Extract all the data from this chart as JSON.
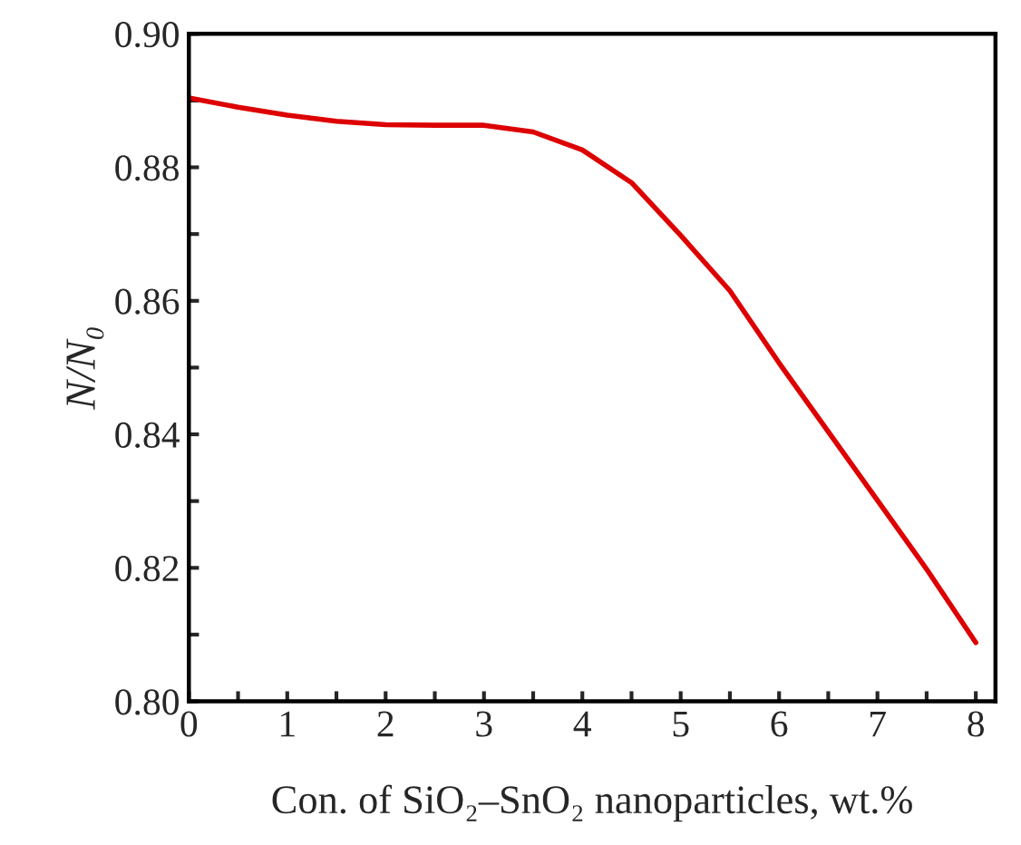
{
  "chart_data": {
    "type": "line",
    "xlabel": "Con. of SiO₂–SnO₂ nanoparticles, wt.%",
    "ylabel": "N/N₀",
    "x": [
      0,
      0.5,
      1,
      1.5,
      2,
      2.5,
      3,
      3.5,
      4,
      4.5,
      5,
      5.5,
      6,
      6.5,
      7,
      7.5,
      8
    ],
    "series": [
      {
        "color": "#dd0000",
        "values": [
          0.8904,
          0.889,
          0.8878,
          0.8869,
          0.8864,
          0.8863,
          0.8863,
          0.8853,
          0.8826,
          0.8777,
          0.8698,
          0.8615,
          0.8507,
          0.8404,
          0.8301,
          0.8198,
          0.8088
        ]
      }
    ],
    "xlim": [
      0,
      8.2
    ],
    "ylim": [
      0.8,
      0.9
    ],
    "xticks": [
      0,
      {
        "value": 0.5,
        "label": null
      },
      1,
      {
        "value": 1.5,
        "label": null
      },
      2,
      {
        "value": 2.5,
        "label": null
      },
      3,
      {
        "value": 3.5,
        "label": null
      },
      4,
      {
        "value": 4.5,
        "label": null
      },
      5,
      {
        "value": 5.5,
        "label": null
      },
      6,
      {
        "value": 6.5,
        "label": null
      },
      7,
      {
        "value": 7.5,
        "label": null
      },
      8
    ],
    "yticks": [
      {
        "value": 0.8,
        "label": "0.80"
      },
      {
        "value": 0.81,
        "label": null
      },
      {
        "value": 0.82,
        "label": "0.82"
      },
      {
        "value": 0.83,
        "label": null
      },
      {
        "value": 0.84,
        "label": "0.84"
      },
      {
        "value": 0.85,
        "label": null
      },
      {
        "value": 0.86,
        "label": "0.86"
      },
      {
        "value": 0.87,
        "label": null
      },
      {
        "value": 0.88,
        "label": "0.88"
      },
      {
        "value": 0.89,
        "label": null
      },
      {
        "value": 0.9,
        "label": "0.90"
      }
    ],
    "grid": false,
    "legend": false,
    "marker": "none",
    "line_style": "solid"
  }
}
